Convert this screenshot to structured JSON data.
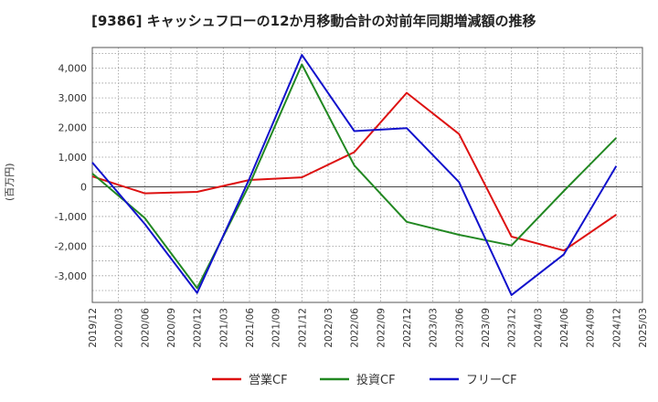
{
  "chart_data": {
    "type": "line",
    "title": "[9386]  キャッシュフローの12か月移動合計の対前年同期増減額の推移",
    "ylabel": "(百万円)",
    "xlabel": "",
    "ylim": [
      -3900,
      4700
    ],
    "yticks": [
      -3000,
      -2000,
      -1000,
      0,
      1000,
      2000,
      3000,
      4000
    ],
    "ytick_labels": [
      "-3,000",
      "-2,000",
      "-1,000",
      "0",
      "1,000",
      "2,000",
      "3,000",
      "4,000"
    ],
    "x_ticks": [
      "2019/12",
      "2020/03",
      "2020/06",
      "2020/09",
      "2020/12",
      "2021/03",
      "2021/06",
      "2021/09",
      "2021/12",
      "2022/03",
      "2022/06",
      "2022/09",
      "2022/12",
      "2023/03",
      "2023/06",
      "2023/09",
      "2023/12",
      "2024/03",
      "2024/06",
      "2024/09",
      "2024/12",
      "2025/03"
    ],
    "grid": true,
    "legend_position": "bottom",
    "series": [
      {
        "name": "営業CF",
        "color": "#dd1111",
        "x": [
          "2019/12",
          "2020/06",
          "2020/12",
          "2021/06",
          "2021/12",
          "2022/06",
          "2022/12",
          "2023/06",
          "2023/12",
          "2024/06",
          "2024/12"
        ],
        "values": [
          350,
          -220,
          -170,
          230,
          320,
          1170,
          3170,
          1780,
          -1680,
          -2150,
          -940
        ]
      },
      {
        "name": "投資CF",
        "color": "#228822",
        "x": [
          "2019/12",
          "2020/06",
          "2020/12",
          "2021/06",
          "2021/12",
          "2022/06",
          "2022/12",
          "2023/06",
          "2023/12",
          "2024/06",
          "2024/12"
        ],
        "values": [
          450,
          -1050,
          -3420,
          80,
          4130,
          720,
          -1180,
          -1620,
          -1980,
          -140,
          1650
        ]
      },
      {
        "name": "フリーCF",
        "color": "#1111cc",
        "x": [
          "2019/12",
          "2020/06",
          "2020/12",
          "2021/06",
          "2021/12",
          "2022/06",
          "2022/12",
          "2023/06",
          "2023/12",
          "2024/06",
          "2024/12"
        ],
        "values": [
          820,
          -1250,
          -3580,
          280,
          4450,
          1880,
          1980,
          160,
          -3650,
          -2280,
          700
        ]
      }
    ]
  }
}
